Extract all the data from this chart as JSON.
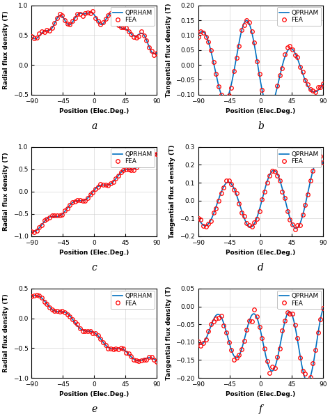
{
  "line_color": "#0070C0",
  "marker_color": "#FF0000",
  "marker": "o",
  "line_width": 1.2,
  "marker_size": 4,
  "xlabel": "Position (Elec.Deg.)",
  "xlim": [
    -90,
    90
  ],
  "xticks": [
    -90,
    -45,
    0,
    45,
    90
  ],
  "legend_line": "QPRHAM",
  "legend_marker": "FEA",
  "subplots": [
    {
      "label": "a",
      "ylabel": "Radial flux density (T)",
      "ylim": [
        -0.5,
        1.0
      ],
      "yticks": [
        -0.5,
        0,
        0.5,
        1.0
      ]
    },
    {
      "label": "b",
      "ylabel": "Tangential flux density (T)",
      "ylim": [
        -0.1,
        0.2
      ],
      "yticks": [
        -0.1,
        -0.05,
        0,
        0.05,
        0.1,
        0.15,
        0.2
      ]
    },
    {
      "label": "c",
      "ylabel": "Radial flux density (T)",
      "ylim": [
        -1.0,
        1.0
      ],
      "yticks": [
        -1.0,
        -0.5,
        0,
        0.5,
        1.0
      ]
    },
    {
      "label": "d",
      "ylabel": "Tangential flux density (T)",
      "ylim": [
        -0.2,
        0.3
      ],
      "yticks": [
        -0.2,
        -0.1,
        0,
        0.1,
        0.2,
        0.3
      ]
    },
    {
      "label": "e",
      "ylabel": "Radial flux density (T)",
      "ylim": [
        -1.0,
        0.5
      ],
      "yticks": [
        -1.0,
        -0.5,
        0,
        0.5
      ]
    },
    {
      "label": "f",
      "ylabel": "Tangential flux density (T)",
      "ylim": [
        -0.2,
        0.05
      ],
      "yticks": [
        -0.2,
        -0.15,
        -0.1,
        -0.05,
        0,
        0.05
      ]
    }
  ]
}
